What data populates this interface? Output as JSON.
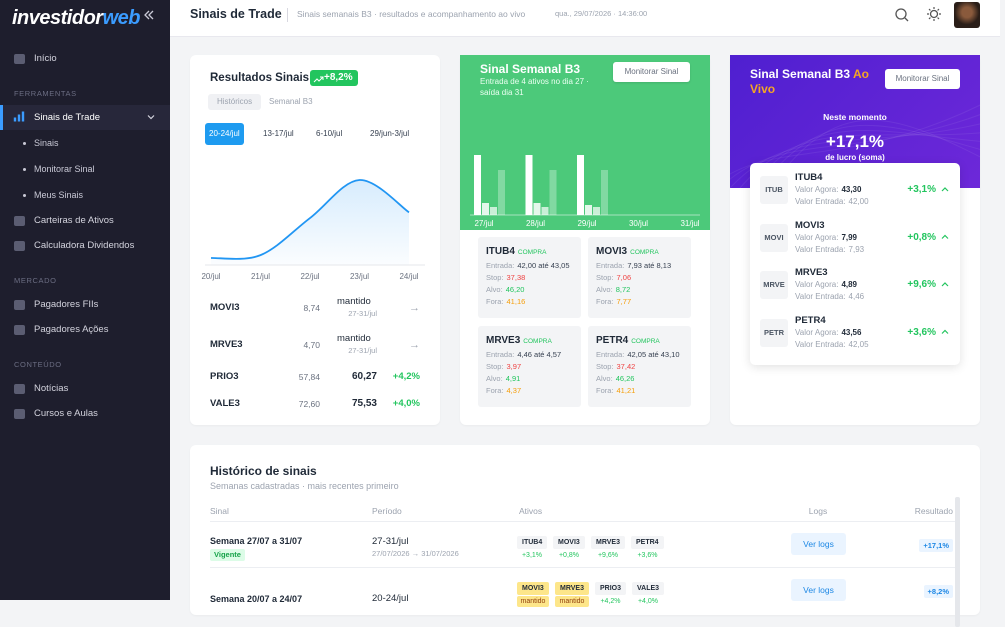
{
  "sidebar": {
    "logo": {
      "main": "investidor",
      "accent": "web"
    },
    "home": "Início",
    "sections": [
      {
        "title": "FERRAMENTAS",
        "items": [
          {
            "label": "Sinais de Trade",
            "active": true,
            "sub": [
              "Sinais",
              "Monitorar Sinal",
              "Meus Sinais"
            ]
          },
          {
            "label": "Carteiras de Ativos"
          },
          {
            "label": "Calculadora Dividendos"
          }
        ]
      },
      {
        "title": "MERCADO",
        "items": [
          {
            "label": "Pagadores FIIs"
          },
          {
            "label": "Pagadores Ações"
          }
        ]
      },
      {
        "title": "CONTEÚDO",
        "items": [
          {
            "label": "Notícias"
          },
          {
            "label": "Cursos e Aulas"
          }
        ]
      }
    ]
  },
  "header": {
    "title": "Sinais de Trade",
    "subtitle": "Sinais semanais B3 · resultados e acompanhamento ao vivo",
    "datetime": "qua., 29/07/2026 · 14:36:00"
  },
  "results": {
    "title": "Resultados Sinais",
    "badge": "+8,2%",
    "tabs": [
      "Históricos",
      "Semanal B3"
    ],
    "weeks": [
      "20-24/jul",
      "13-17/jul",
      "6-10/jul",
      "29/jun-3/jul"
    ],
    "chart": {
      "type": "line",
      "categories": [
        "20/jul",
        "21/jul",
        "22/jul",
        "23/jul",
        "24/jul"
      ],
      "values": [
        0,
        0.3,
        4.2,
        8.2,
        4.8
      ],
      "ylim": [
        0,
        9
      ],
      "color": "#2196f3"
    },
    "rows": [
      {
        "ticker": "MOVI3",
        "entry": "8,74",
        "status": "mantido",
        "period": "27-31/jul",
        "trend": "→"
      },
      {
        "ticker": "MRVE3",
        "entry": "4,70",
        "status": "mantido",
        "period": "27-31/jul",
        "trend": "→"
      },
      {
        "ticker": "PRIO3",
        "entry": "57,84",
        "exit": "60,27",
        "change": "+4,2%"
      },
      {
        "ticker": "VALE3",
        "entry": "72,60",
        "exit": "75,53",
        "change": "+4,0%"
      }
    ]
  },
  "weekly": {
    "title": "Sinal Semanal B3",
    "subtitle": "Entrada de 4 ativos no dia 27 · saída dia 31",
    "button": "Monitorar Sinal",
    "chart": {
      "type": "bar",
      "categories": [
        "27/jul",
        "28/jul",
        "29/jul",
        "30/jul",
        "31/jul"
      ],
      "ylim": [
        0,
        65
      ],
      "series": [
        {
          "color": "#ffffff",
          "values": [
            60,
            60,
            60,
            null,
            null
          ]
        },
        {
          "color": "rgba(255,255,255,0.85)",
          "values": [
            12,
            12,
            10,
            null,
            null
          ]
        },
        {
          "color": "rgba(255,255,255,0.7)",
          "values": [
            8,
            8,
            8,
            null,
            null
          ]
        },
        {
          "color": "rgba(255,255,255,0.3)",
          "values": [
            45,
            45,
            45,
            null,
            null
          ]
        }
      ]
    },
    "labels": {
      "entry": "Entrada:",
      "stop": "Stop:",
      "target": "Alvo:",
      "out": "Fora:"
    },
    "signals": [
      {
        "ticker": "ITUB4",
        "side": "COMPRA",
        "entry": "42,00 até 43,05",
        "stop": "37,38",
        "target": "46,20",
        "out": "41,16"
      },
      {
        "ticker": "MOVI3",
        "side": "COMPRA",
        "entry": "7,93 até 8,13",
        "stop": "7,06",
        "target": "8,72",
        "out": "7,77"
      },
      {
        "ticker": "MRVE3",
        "side": "COMPRA",
        "entry": "4,46 até 4,57",
        "stop": "3,97",
        "target": "4,91",
        "out": "4,37"
      },
      {
        "ticker": "PETR4",
        "side": "COMPRA",
        "entry": "42,05 até 43,10",
        "stop": "37,42",
        "target": "46,26",
        "out": "41,21"
      }
    ]
  },
  "live": {
    "title": "Sinal Semanal B3",
    "title_accent": "Ao Vivo",
    "button": "Monitorar Sinal",
    "caption": "Neste momento",
    "total": "+17,1%",
    "total_caption": "de lucro (soma)",
    "labels": {
      "now": "Valor Agora:",
      "entry": "Valor Entrada:"
    },
    "items": [
      {
        "logo": "ITUB",
        "ticker": "ITUB4",
        "now": "43,30",
        "entry": "42,00",
        "change": "+3,1%"
      },
      {
        "logo": "MOVI",
        "ticker": "MOVI3",
        "now": "7,99",
        "entry": "7,93",
        "change": "+0,8%"
      },
      {
        "logo": "MRVE",
        "ticker": "MRVE3",
        "now": "4,89",
        "entry": "4,46",
        "change": "+9,6%"
      },
      {
        "logo": "PETR",
        "ticker": "PETR4",
        "now": "43,56",
        "entry": "42,05",
        "change": "+3,6%"
      }
    ]
  },
  "history": {
    "title": "Histórico de sinais",
    "subtitle": "Semanas cadastradas · mais recentes primeiro",
    "columns": [
      "Sinal",
      "Período",
      "Ativos",
      "Logs",
      "Resultado"
    ],
    "rows": [
      {
        "week": "Semana 27/07 a 31/07",
        "status": "Vigente",
        "period": "27-31/jul",
        "dates": "27/07/2026 → 31/07/2026",
        "assets": [
          {
            "ticker": "ITUB4",
            "change": "+3,1%"
          },
          {
            "ticker": "MOVI3",
            "change": "+0,8%"
          },
          {
            "ticker": "MRVE3",
            "change": "+9,6%"
          },
          {
            "ticker": "PETR4",
            "change": "+3,6%"
          }
        ],
        "logs": "Ver logs",
        "result": "+17,1%"
      },
      {
        "week": "Semana 20/07 a 24/07",
        "period": "20-24/jul",
        "assets": [
          {
            "ticker": "MOVI3",
            "change": "mantido",
            "color": "#fde68a"
          },
          {
            "ticker": "MRVE3",
            "change": "mantido",
            "color": "#fde68a"
          },
          {
            "ticker": "PRIO3",
            "change": "+4,2%"
          },
          {
            "ticker": "VALE3",
            "change": "+4,0%"
          }
        ],
        "logs": "Ver logs",
        "result": "+8,2%"
      }
    ]
  }
}
